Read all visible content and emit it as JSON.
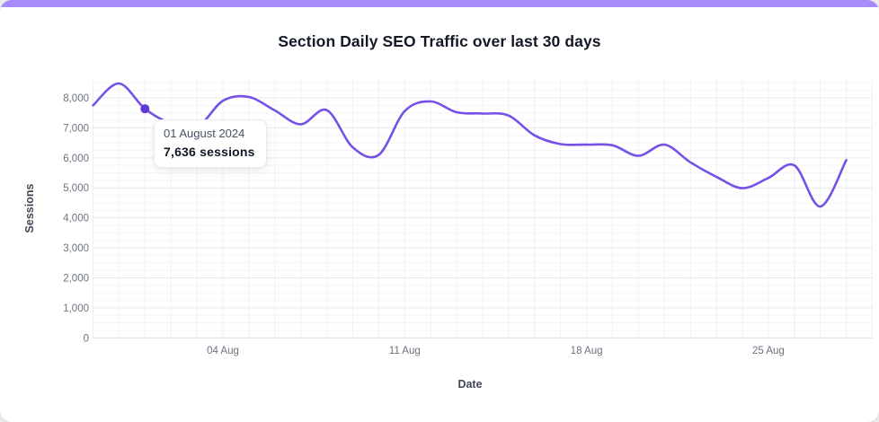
{
  "page": {
    "background_color": "#ebebeb",
    "card_background": "#ffffff",
    "accent_bar_color": "#a78bfa"
  },
  "chart": {
    "title": "Section Daily SEO Traffic over last 30 days",
    "x_axis_title": "Date",
    "y_axis_title": "Sessions"
  },
  "tooltip": {
    "date": "01 August 2024",
    "value": "7,636 sessions",
    "point_index": 2
  },
  "chart_data": {
    "type": "line",
    "title": "Section Daily SEO Traffic over last 30 days",
    "xlabel": "Date",
    "ylabel": "Sessions",
    "x": [
      "30 Jul",
      "31 Jul",
      "01 Aug",
      "02 Aug",
      "03 Aug",
      "04 Aug",
      "05 Aug",
      "06 Aug",
      "07 Aug",
      "08 Aug",
      "09 Aug",
      "10 Aug",
      "11 Aug",
      "12 Aug",
      "13 Aug",
      "14 Aug",
      "15 Aug",
      "16 Aug",
      "17 Aug",
      "18 Aug",
      "19 Aug",
      "20 Aug",
      "21 Aug",
      "22 Aug",
      "23 Aug",
      "24 Aug",
      "25 Aug",
      "26 Aug",
      "27 Aug",
      "28 Aug"
    ],
    "series": [
      {
        "name": "Sessions",
        "values": [
          7750,
          8480,
          7636,
          7150,
          7020,
          7900,
          8030,
          7580,
          7120,
          7590,
          6350,
          6100,
          7560,
          7880,
          7520,
          7480,
          7410,
          6750,
          6460,
          6440,
          6420,
          6070,
          6440,
          5850,
          5370,
          4990,
          5330,
          5750,
          4380,
          5930
        ]
      }
    ],
    "highlighted_point": {
      "x": "01 Aug",
      "value": 7636
    },
    "ylim": [
      0,
      8600
    ],
    "y_major_step": 1000,
    "y_minor_step": 250,
    "y_tick_labels": [
      "0",
      "1,000",
      "2,000",
      "3,000",
      "4,000",
      "5,000",
      "6,000",
      "7,000",
      "8,000"
    ],
    "x_tick_labels": [
      {
        "index": 5,
        "label": "04 Aug"
      },
      {
        "index": 12,
        "label": "11 Aug"
      },
      {
        "index": 19,
        "label": "18 Aug"
      },
      {
        "index": 26,
        "label": "25 Aug"
      }
    ],
    "grid": true,
    "legend": "none",
    "line_color": "#7551e8",
    "dot_color": "#6238d2"
  }
}
